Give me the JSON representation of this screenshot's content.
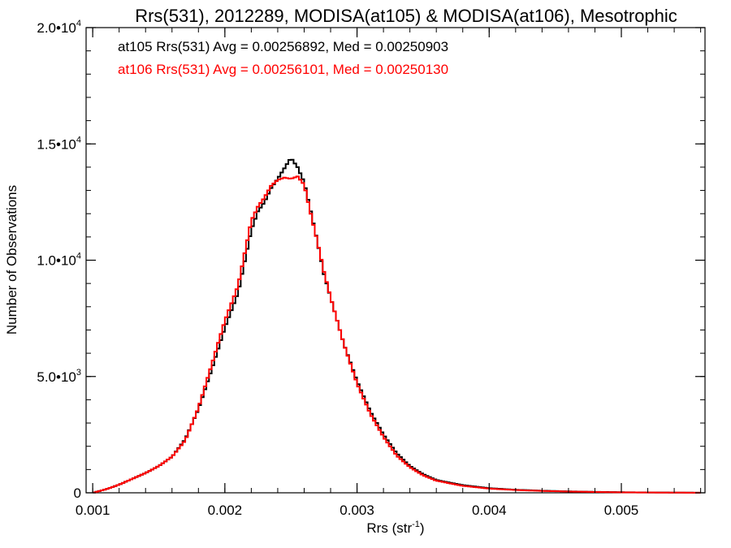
{
  "chart_data": {
    "type": "line",
    "title": "Rrs(531), 2012289, MODISA(at105) & MODISA(at106), Mesotrophic",
    "xlabel": "Rrs (str",
    "xlabel_sup": "-1",
    "xlabel_close": ")",
    "ylabel": "Number of Observations",
    "xlim": [
      0.00095,
      0.005633
    ],
    "ylim": [
      0,
      20000
    ],
    "grid": false,
    "x_ticks": [
      {
        "value": 0.001,
        "label": "0.001"
      },
      {
        "value": 0.002,
        "label": "0.002"
      },
      {
        "value": 0.003,
        "label": "0.003"
      },
      {
        "value": 0.004,
        "label": "0.004"
      },
      {
        "value": 0.005,
        "label": "0.005"
      }
    ],
    "y_ticks": [
      {
        "value": 0,
        "mant": "0",
        "exp": ""
      },
      {
        "value": 5000,
        "mant": "5.0•10",
        "exp": "3"
      },
      {
        "value": 10000,
        "mant": "1.0•10",
        "exp": "4"
      },
      {
        "value": 15000,
        "mant": "1.5•10",
        "exp": "4"
      },
      {
        "value": 20000,
        "mant": "2.0•10",
        "exp": "4"
      }
    ],
    "annotations": [
      {
        "text": "at105 Rrs(531) Avg = 0.00256892, Med = 0.00250903",
        "color": "#000000"
      },
      {
        "text": "at106 Rrs(531) Avg = 0.00256101, Med = 0.00250130",
        "color": "#ff0000"
      }
    ],
    "series": [
      {
        "name": "at105",
        "color": "#000000",
        "x": [
          0.001,
          0.0011,
          0.0012,
          0.0013,
          0.0014,
          0.0015,
          0.0016,
          0.0017,
          0.0018,
          0.0019,
          0.002,
          0.0021,
          0.0022,
          0.00225,
          0.0023,
          0.00235,
          0.0024,
          0.00245,
          0.0025,
          0.00255,
          0.0026,
          0.00265,
          0.0027,
          0.00275,
          0.0028,
          0.0029,
          0.003,
          0.0031,
          0.0032,
          0.0033,
          0.0034,
          0.0035,
          0.0036,
          0.0038,
          0.004,
          0.0042,
          0.0044,
          0.0046,
          0.0048,
          0.005,
          0.0052,
          0.0054,
          0.0056
        ],
        "y": [
          0,
          150,
          350,
          600,
          850,
          1150,
          1550,
          2300,
          3600,
          5300,
          7100,
          8600,
          11300,
          12100,
          12500,
          13100,
          13500,
          13950,
          14400,
          14000,
          13350,
          12100,
          10800,
          9400,
          8400,
          6400,
          4800,
          3500,
          2500,
          1700,
          1150,
          800,
          550,
          330,
          200,
          130,
          90,
          60,
          40,
          25,
          15,
          10,
          5
        ]
      },
      {
        "name": "at106",
        "color": "#ff0000",
        "x": [
          0.001,
          0.0011,
          0.0012,
          0.0013,
          0.0014,
          0.0015,
          0.0016,
          0.0017,
          0.0018,
          0.0019,
          0.002,
          0.0021,
          0.0022,
          0.00225,
          0.0023,
          0.00235,
          0.0024,
          0.00245,
          0.0025,
          0.00255,
          0.0026,
          0.00265,
          0.0027,
          0.00275,
          0.0028,
          0.0029,
          0.003,
          0.0031,
          0.0032,
          0.0033,
          0.0034,
          0.0035,
          0.0036,
          0.0038,
          0.004,
          0.0042,
          0.0044,
          0.0046,
          0.0048,
          0.005,
          0.0052,
          0.0054,
          0.0056
        ],
        "y": [
          0,
          150,
          350,
          600,
          850,
          1150,
          1550,
          2250,
          3650,
          5500,
          7400,
          8900,
          11700,
          12300,
          12700,
          13200,
          13450,
          13550,
          13500,
          13600,
          13250,
          12000,
          10800,
          9500,
          8400,
          6400,
          4700,
          3400,
          2400,
          1600,
          1100,
          750,
          520,
          300,
          180,
          120,
          80,
          55,
          35,
          20,
          12,
          8,
          4
        ]
      }
    ]
  }
}
